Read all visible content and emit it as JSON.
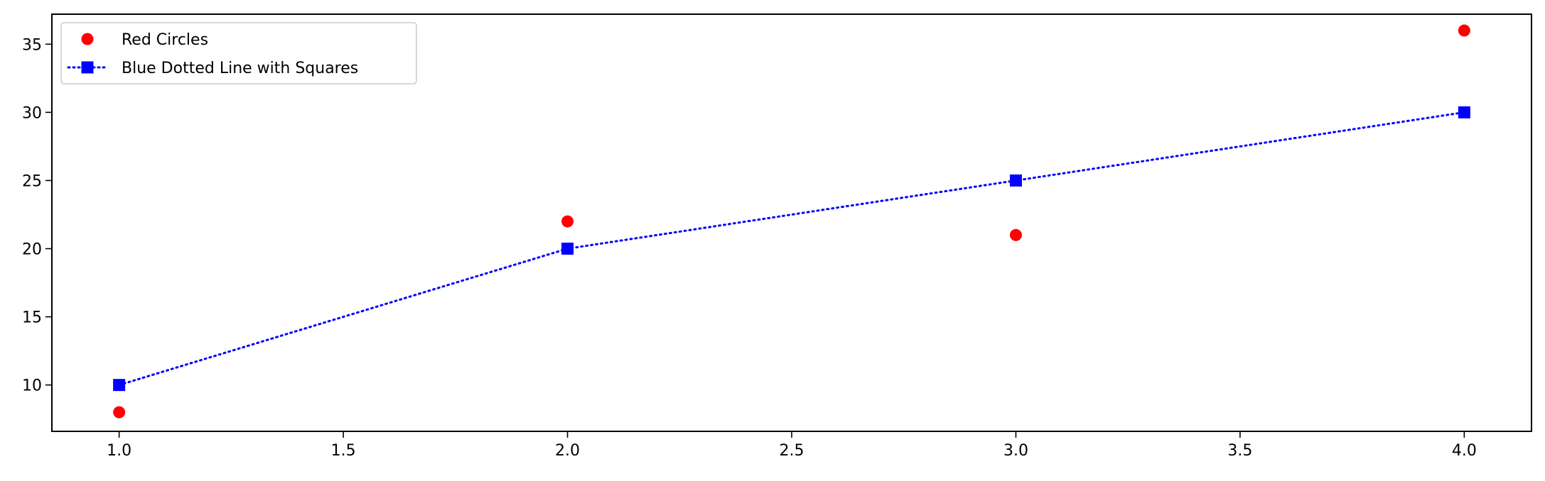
{
  "chart_data": {
    "type": "scatter",
    "title": "",
    "xlabel": "",
    "ylabel": "",
    "xlim": [
      0.85,
      4.15
    ],
    "ylim": [
      6.6,
      37.2
    ],
    "x_ticks": [
      1.0,
      1.5,
      2.0,
      2.5,
      3.0,
      3.5,
      4.0
    ],
    "x_tick_labels": [
      "1.0",
      "1.5",
      "2.0",
      "2.5",
      "3.0",
      "3.5",
      "4.0"
    ],
    "y_ticks": [
      10,
      15,
      20,
      25,
      30,
      35
    ],
    "y_tick_labels": [
      "10",
      "15",
      "20",
      "25",
      "30",
      "35"
    ],
    "grid": false,
    "legend_position": "top-left",
    "series": [
      {
        "name": "Red Circles",
        "kind": "scatter",
        "marker": "circle",
        "color": "#ff0000",
        "x": [
          1,
          2,
          3,
          4
        ],
        "y": [
          8,
          22,
          21,
          36
        ]
      },
      {
        "name": "Blue Dotted Line with Squares",
        "kind": "line",
        "line_style": "dotted",
        "marker": "square",
        "color": "#0000ff",
        "x": [
          1,
          2,
          3,
          4
        ],
        "y": [
          10,
          20,
          25,
          30
        ]
      }
    ]
  }
}
